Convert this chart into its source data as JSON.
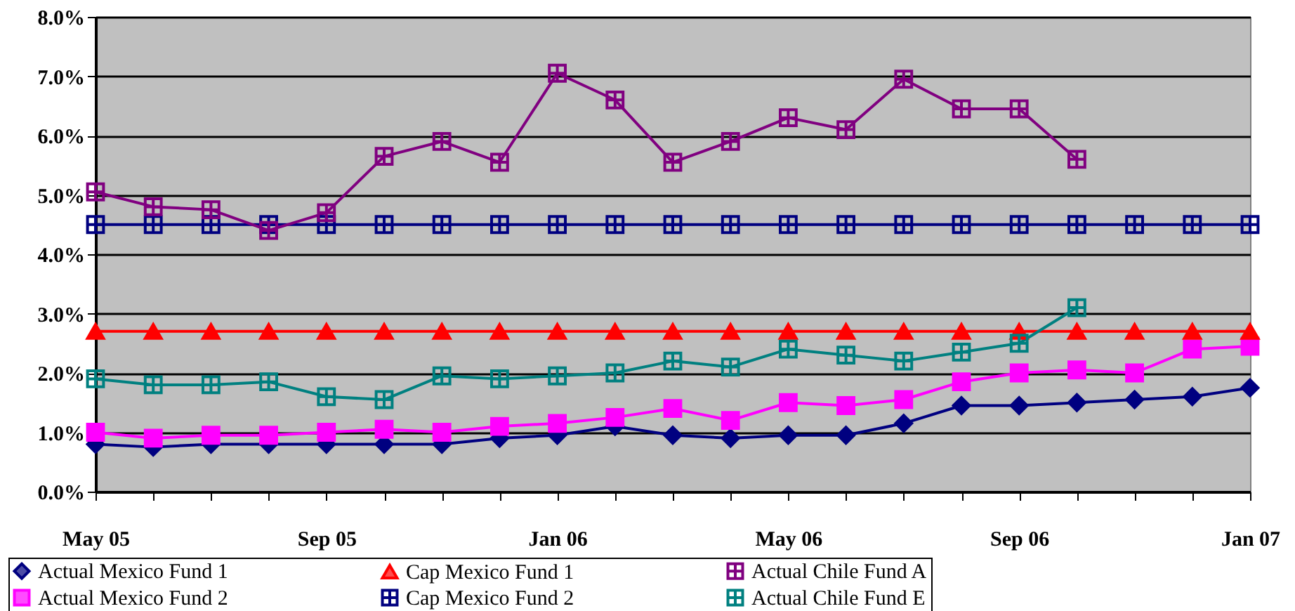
{
  "chart_data": {
    "type": "line",
    "categories": [
      "May 05",
      null,
      null,
      null,
      "Sep 05",
      null,
      null,
      null,
      "Jan 06",
      null,
      null,
      null,
      "May 06",
      null,
      null,
      null,
      "Sep 06",
      null,
      null,
      null,
      "Jan 07"
    ],
    "series": [
      {
        "name": "Actual Mexico Fund 1",
        "color": "#000080",
        "marker": "diamond",
        "values": [
          0.8,
          0.75,
          0.8,
          0.8,
          0.8,
          0.8,
          0.8,
          0.9,
          0.95,
          1.1,
          0.95,
          0.9,
          0.95,
          0.95,
          1.15,
          1.45,
          1.45,
          1.5,
          1.55,
          1.6,
          1.75
        ]
      },
      {
        "name": "Actual Mexico Fund 2",
        "color": "#ff00ff",
        "marker": "square",
        "values": [
          1.0,
          0.9,
          0.95,
          0.95,
          1.0,
          1.05,
          1.0,
          1.1,
          1.15,
          1.25,
          1.4,
          1.2,
          1.5,
          1.45,
          1.55,
          1.85,
          2.0,
          2.05,
          2.0,
          2.4,
          2.45
        ]
      },
      {
        "name": "Cap Mexico Fund 1",
        "color": "#ff0000",
        "marker": "triangle",
        "values": [
          2.7,
          2.7,
          2.7,
          2.7,
          2.7,
          2.7,
          2.7,
          2.7,
          2.7,
          2.7,
          2.7,
          2.7,
          2.7,
          2.7,
          2.7,
          2.7,
          2.7,
          2.7,
          2.7,
          2.7,
          2.7
        ]
      },
      {
        "name": "Cap Mexico Fund 2",
        "color": "#000080",
        "marker": "cross",
        "values": [
          4.5,
          4.5,
          4.5,
          4.5,
          4.5,
          4.5,
          4.5,
          4.5,
          4.5,
          4.5,
          4.5,
          4.5,
          4.5,
          4.5,
          4.5,
          4.5,
          4.5,
          4.5,
          4.5,
          4.5,
          4.5
        ]
      },
      {
        "name": "Actual Chile Fund A",
        "color": "#800080",
        "marker": "cross",
        "values": [
          5.05,
          4.8,
          4.75,
          4.4,
          4.7,
          5.65,
          5.9,
          5.55,
          7.05,
          6.6,
          5.55,
          5.9,
          6.3,
          6.1,
          6.95,
          6.45,
          6.45,
          5.6,
          null,
          null,
          null
        ]
      },
      {
        "name": "Actual Chile Fund E",
        "color": "#008080",
        "marker": "cross",
        "values": [
          1.9,
          1.8,
          1.8,
          1.85,
          1.6,
          1.55,
          1.95,
          1.9,
          1.95,
          2.0,
          2.2,
          2.1,
          2.4,
          2.3,
          2.2,
          2.35,
          2.5,
          3.1,
          null,
          null,
          null
        ]
      }
    ],
    "ylim": [
      0,
      8
    ],
    "yticks": [
      {
        "value": 0,
        "label": "0.0%"
      },
      {
        "value": 1,
        "label": "1.0%"
      },
      {
        "value": 2,
        "label": "2.0%"
      },
      {
        "value": 3,
        "label": "3.0%"
      },
      {
        "value": 4,
        "label": "4.0%"
      },
      {
        "value": 5,
        "label": "5.0%"
      },
      {
        "value": 6,
        "label": "6.0%"
      },
      {
        "value": 7,
        "label": "7.0%"
      },
      {
        "value": 8,
        "label": "8.0%"
      }
    ],
    "grid": "y",
    "legend": "bottom"
  }
}
